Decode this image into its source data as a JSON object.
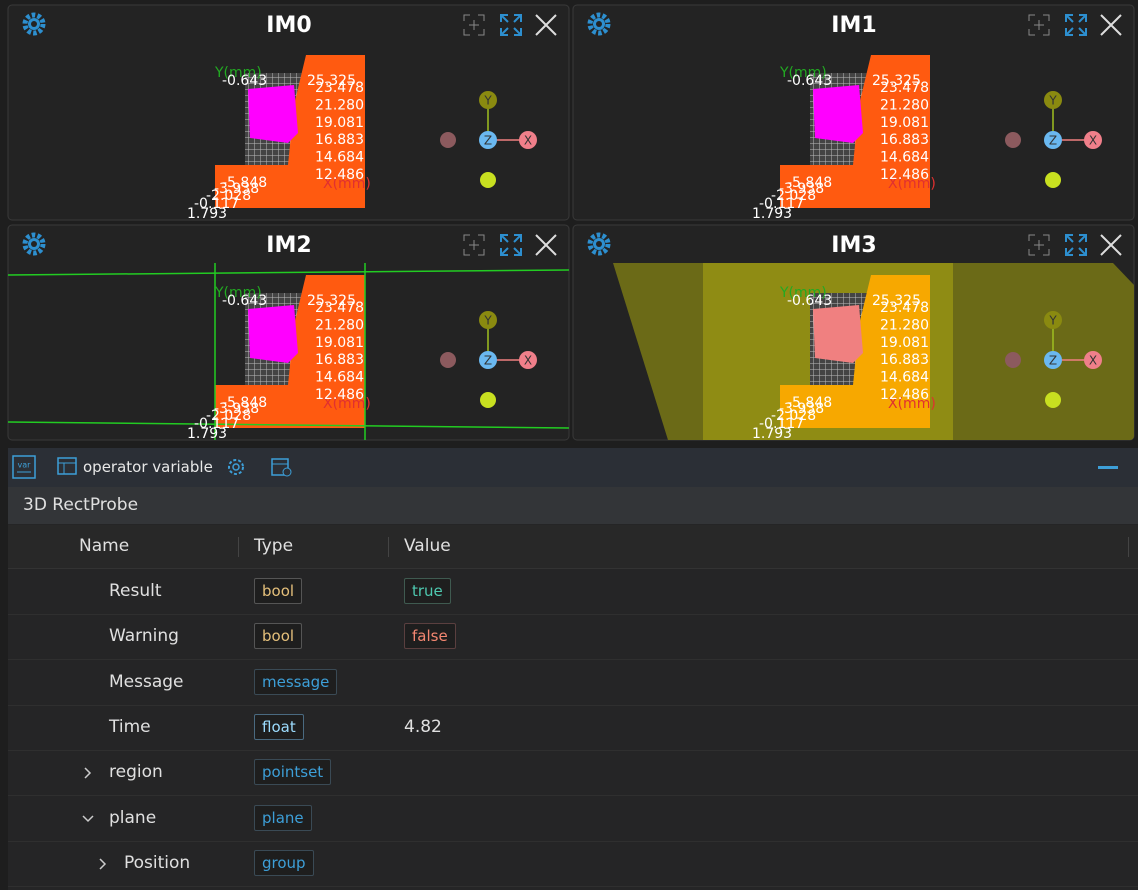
{
  "viewers": {
    "panels": [
      {
        "title": "IM0"
      },
      {
        "title": "IM1"
      },
      {
        "title": "IM2"
      },
      {
        "title": "IM3"
      }
    ],
    "axis_labels": {
      "y_axis": "Y(mm)",
      "x_axis": "X(mm)",
      "top_left": "-0.643",
      "top_right": "25.325",
      "right_values": [
        "23.478",
        "21.280",
        "19.081",
        "16.883",
        "14.684",
        "12.486"
      ],
      "left_values": [
        "-5.848",
        "-3.938",
        "-2.028",
        "-0.117",
        "1.793"
      ]
    },
    "gizmo": {
      "y": "Y",
      "z": "Z",
      "x": "X"
    }
  },
  "variables": {
    "toolbar_label": "operator variable",
    "section": "3D RectProbe",
    "columns": [
      "Name",
      "Type",
      "Value"
    ],
    "rows": [
      {
        "name": "Result",
        "type": "bool",
        "value": "true"
      },
      {
        "name": "Warning",
        "type": "bool",
        "value": "false"
      },
      {
        "name": "Message",
        "type": "message"
      },
      {
        "name": "Time",
        "type": "float",
        "value": "4.82"
      },
      {
        "name": "region",
        "type": "pointset"
      },
      {
        "name": "plane",
        "type": "plane"
      },
      {
        "name": "Position",
        "type": "group"
      }
    ]
  }
}
